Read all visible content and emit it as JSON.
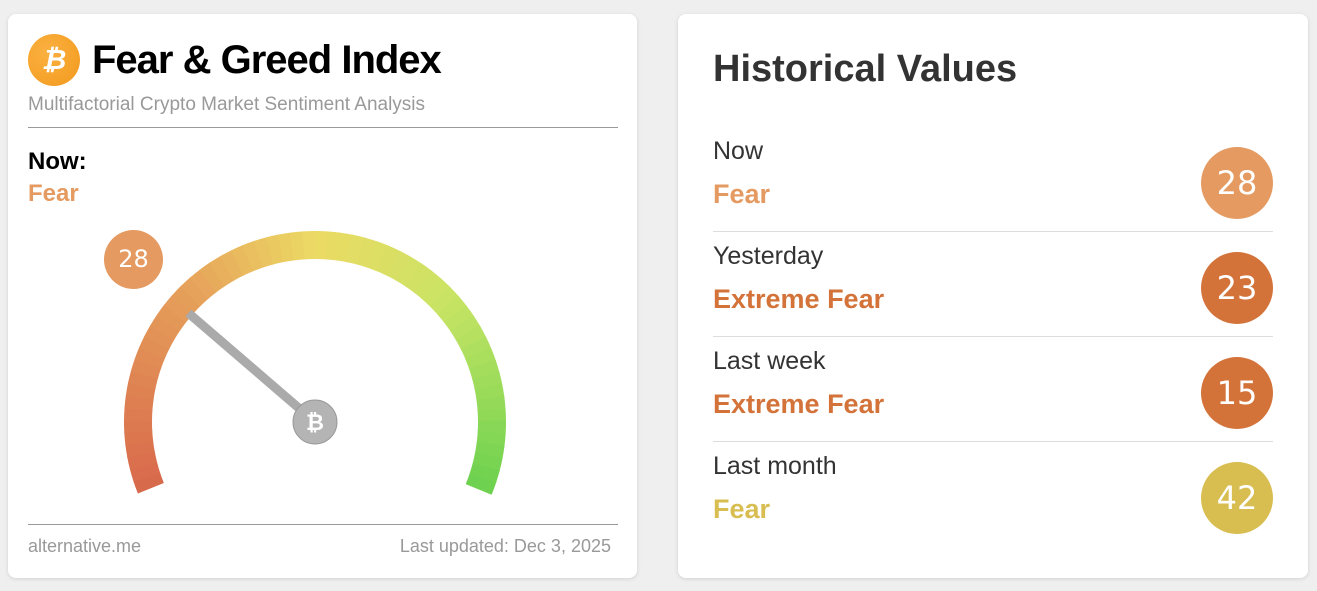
{
  "left": {
    "logo_icon": "bitcoin-icon",
    "title": "Fear & Greed Index",
    "subtitle": "Multifactorial Crypto Market Sentiment Analysis",
    "now_label": "Now:",
    "now_class": "Fear",
    "value": "28",
    "gauge_value": 28,
    "gauge_range": [
      0,
      100
    ],
    "footer_left": "alternative.me",
    "footer_right": "Last updated: Dec 3, 2025"
  },
  "right": {
    "title": "Historical Values",
    "rows": [
      {
        "label": "Now",
        "class": "Fear",
        "value": "28",
        "color": "#e49a60"
      },
      {
        "label": "Yesterday",
        "class": "Extreme Fear",
        "value": "23",
        "color": "#d3733a"
      },
      {
        "label": "Last week",
        "class": "Extreme Fear",
        "value": "15",
        "color": "#d3733a"
      },
      {
        "label": "Last month",
        "class": "Fear",
        "value": "42",
        "color": "#d8bd50"
      }
    ]
  }
}
